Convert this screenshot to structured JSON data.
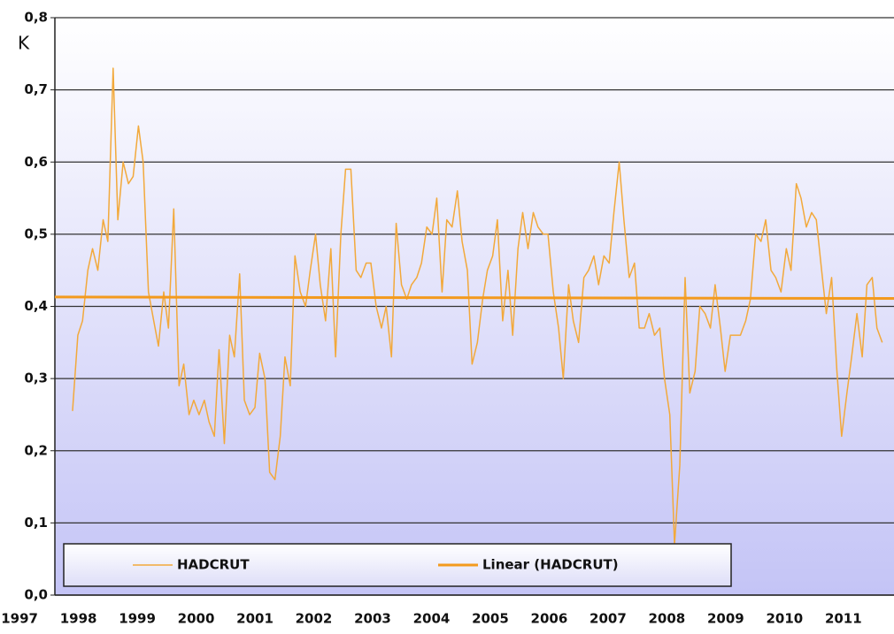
{
  "chart_data": {
    "type": "line",
    "y_label": "K",
    "xlim": [
      1997.6,
      2011.86
    ],
    "xticks": [
      1997,
      1998,
      1999,
      2000,
      2001,
      2002,
      2003,
      2004,
      2005,
      2006,
      2007,
      2008,
      2009,
      2010,
      2011
    ],
    "ylim": [
      0,
      0.8
    ],
    "yticks": [
      {
        "value": 0,
        "label": "0,0"
      },
      {
        "value": 0.1,
        "label": "0,1"
      },
      {
        "value": 0.2,
        "label": "0,2"
      },
      {
        "value": 0.3,
        "label": "0,3"
      },
      {
        "value": 0.4,
        "label": "0,4"
      },
      {
        "value": 0.5,
        "label": "0,5"
      },
      {
        "value": 0.6,
        "label": "0,6"
      },
      {
        "value": 0.7,
        "label": "0,7"
      },
      {
        "value": 0.8,
        "label": "0,8"
      }
    ],
    "grid": true,
    "legend": "bottom",
    "x": [
      1997.9,
      1997.99,
      1998.07,
      1998.16,
      1998.24,
      1998.33,
      1998.42,
      1998.5,
      1998.59,
      1998.67,
      1998.76,
      1998.85,
      1998.93,
      1999.02,
      1999.1,
      1999.19,
      1999.28,
      1999.36,
      1999.45,
      1999.53,
      1999.62,
      1999.71,
      1999.79,
      1999.88,
      1999.96,
      2000.05,
      2000.14,
      2000.22,
      2000.31,
      2000.39,
      2000.48,
      2000.57,
      2000.65,
      2000.74,
      2000.82,
      2000.91,
      2001.0,
      2001.08,
      2001.17,
      2001.25,
      2001.34,
      2001.43,
      2001.51,
      2001.6,
      2001.68,
      2001.77,
      2001.86,
      2001.94,
      2002.03,
      2002.11,
      2002.2,
      2002.29,
      2002.37,
      2002.46,
      2002.54,
      2002.63,
      2002.72,
      2002.8,
      2002.89,
      2002.97,
      2003.06,
      2003.15,
      2003.23,
      2003.32,
      2003.4,
      2003.49,
      2003.58,
      2003.66,
      2003.75,
      2003.83,
      2003.92,
      2004.01,
      2004.09,
      2004.18,
      2004.26,
      2004.35,
      2004.44,
      2004.52,
      2004.61,
      2004.69,
      2004.78,
      2004.87,
      2004.95,
      2005.04,
      2005.12,
      2005.21,
      2005.3,
      2005.38,
      2005.47,
      2005.55,
      2005.64,
      2005.73,
      2005.81,
      2005.9,
      2005.98,
      2006.07,
      2006.16,
      2006.24,
      2006.33,
      2006.41,
      2006.5,
      2006.59,
      2006.67,
      2006.76,
      2006.84,
      2006.93,
      2007.02,
      2007.1,
      2007.19,
      2007.27,
      2007.36,
      2007.45,
      2007.53,
      2007.62,
      2007.7,
      2007.79,
      2007.88,
      2007.96,
      2008.05,
      2008.13,
      2008.22,
      2008.31,
      2008.39,
      2008.48,
      2008.56,
      2008.65,
      2008.74,
      2008.82,
      2008.91,
      2008.99,
      2009.08,
      2009.17,
      2009.25,
      2009.34,
      2009.42,
      2009.51,
      2009.6,
      2009.68,
      2009.77,
      2009.85,
      2009.94,
      2010.03,
      2010.11,
      2010.2,
      2010.28,
      2010.37,
      2010.46,
      2010.54,
      2010.63,
      2010.71,
      2010.8,
      2010.89,
      2010.97,
      2011.06,
      2011.14,
      2011.23,
      2011.32,
      2011.4,
      2011.49,
      2011.57,
      2011.66
    ],
    "series": [
      {
        "name": "HADCRUT",
        "color": "#f2a93b",
        "width": 1.5,
        "values": [
          0.255,
          0.36,
          0.38,
          0.45,
          0.48,
          0.45,
          0.52,
          0.49,
          0.73,
          0.52,
          0.6,
          0.57,
          0.58,
          0.65,
          0.6,
          0.42,
          0.38,
          0.345,
          0.42,
          0.37,
          0.535,
          0.29,
          0.32,
          0.25,
          0.27,
          0.25,
          0.27,
          0.24,
          0.22,
          0.34,
          0.21,
          0.36,
          0.33,
          0.445,
          0.27,
          0.25,
          0.26,
          0.335,
          0.3,
          0.17,
          0.16,
          0.22,
          0.33,
          0.29,
          0.47,
          0.42,
          0.4,
          0.45,
          0.5,
          0.43,
          0.38,
          0.48,
          0.33,
          0.5,
          0.59,
          0.59,
          0.45,
          0.44,
          0.46,
          0.46,
          0.4,
          0.37,
          0.4,
          0.33,
          0.515,
          0.43,
          0.41,
          0.43,
          0.44,
          0.46,
          0.51,
          0.5,
          0.55,
          0.42,
          0.52,
          0.51,
          0.56,
          0.49,
          0.45,
          0.32,
          0.35,
          0.41,
          0.45,
          0.47,
          0.52,
          0.38,
          0.45,
          0.36,
          0.48,
          0.53,
          0.48,
          0.53,
          0.51,
          0.5,
          0.5,
          0.42,
          0.37,
          0.3,
          0.43,
          0.38,
          0.35,
          0.44,
          0.45,
          0.47,
          0.43,
          0.47,
          0.46,
          0.53,
          0.6,
          0.52,
          0.44,
          0.46,
          0.37,
          0.37,
          0.39,
          0.36,
          0.37,
          0.3,
          0.25,
          0.07,
          0.18,
          0.44,
          0.28,
          0.31,
          0.4,
          0.39,
          0.37,
          0.43,
          0.37,
          0.31,
          0.36,
          0.36,
          0.36,
          0.38,
          0.41,
          0.5,
          0.49,
          0.52,
          0.45,
          0.44,
          0.42,
          0.48,
          0.45,
          0.57,
          0.55,
          0.51,
          0.53,
          0.52,
          0.45,
          0.39,
          0.44,
          0.31,
          0.22,
          0.28,
          0.33,
          0.39,
          0.33,
          0.43,
          0.44,
          0.37,
          0.35
        ]
      },
      {
        "name": "Linear (HADCRUT)",
        "color": "#f39a1e",
        "width": 3,
        "x": [
          1997.6,
          2011.86
        ],
        "values": [
          0.413,
          0.411
        ]
      }
    ]
  }
}
